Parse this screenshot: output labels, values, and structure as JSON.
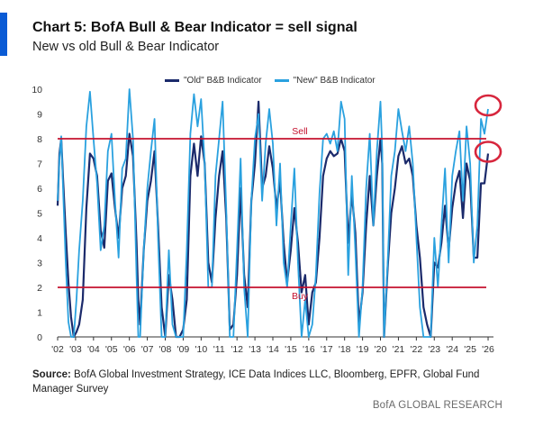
{
  "header": {
    "title": "Chart 5: BofA Bull & Bear Indicator = sell signal",
    "subtitle": "New vs old Bull & Bear Indicator",
    "accent_color": "#0a5bd5"
  },
  "footer": {
    "source_label": "Source:",
    "source_text": "BofA Global Investment Strategy, ICE Data Indices LLC, Bloomberg, EPFR, Global Fund Manager Survey",
    "brand": "BofA GLOBAL RESEARCH"
  },
  "chart_data": {
    "type": "line",
    "title": "Chart 5: BofA Bull & Bear Indicator = sell signal",
    "subtitle": "New vs old Bull & Bear Indicator",
    "xlabel": "",
    "ylabel": "",
    "xlim": [
      2002,
      2026.3
    ],
    "ylim": [
      0,
      10
    ],
    "yticks": [
      "0",
      "1",
      "2",
      "3",
      "4",
      "5",
      "6",
      "7",
      "8",
      "9",
      "10"
    ],
    "xticks": [
      "'02",
      "'03",
      "'04",
      "'05",
      "'06",
      "'07",
      "'08",
      "'09",
      "'10",
      "'11",
      "'12",
      "'13",
      "'14",
      "'15",
      "'16",
      "'17",
      "'18",
      "'19",
      "'20",
      "'21",
      "'22",
      "'23",
      "'24",
      "'25",
      "'26"
    ],
    "grid": false,
    "legend_position": "top",
    "reference_lines": [
      {
        "label": "Sell",
        "y": 8,
        "color": "#c4122f"
      },
      {
        "label": "Buy",
        "y": 2,
        "color": "#c4122f"
      }
    ],
    "highlight_markers": [
      {
        "series": "\"New\" B&B Indicator",
        "x": 2026.0,
        "y": 9.2,
        "color": "#d7263d"
      },
      {
        "series": "\"Old\" B&B Indicator",
        "x": 2026.0,
        "y": 7.4,
        "color": "#d7263d"
      }
    ],
    "series": [
      {
        "name": "\"Old\" B&B Indicator",
        "color": "#1b2a6b",
        "x": [
          2002.0,
          2002.1,
          2002.2,
          2002.3,
          2002.45,
          2002.6,
          2002.75,
          2002.9,
          2003.05,
          2003.2,
          2003.4,
          2003.6,
          2003.8,
          2004.0,
          2004.2,
          2004.4,
          2004.6,
          2004.8,
          2005.0,
          2005.2,
          2005.4,
          2005.6,
          2005.8,
          2006.0,
          2006.2,
          2006.4,
          2006.5,
          2006.6,
          2006.8,
          2007.0,
          2007.2,
          2007.4,
          2007.6,
          2007.8,
          2008.0,
          2008.2,
          2008.4,
          2008.6,
          2008.8,
          2009.0,
          2009.2,
          2009.4,
          2009.6,
          2009.8,
          2010.0,
          2010.2,
          2010.4,
          2010.6,
          2010.8,
          2011.0,
          2011.2,
          2011.4,
          2011.6,
          2011.8,
          2012.0,
          2012.2,
          2012.4,
          2012.6,
          2012.8,
          2013.0,
          2013.2,
          2013.4,
          2013.6,
          2013.8,
          2014.0,
          2014.2,
          2014.4,
          2014.6,
          2014.8,
          2015.0,
          2015.2,
          2015.4,
          2015.6,
          2015.8,
          2016.0,
          2016.2,
          2016.4,
          2016.6,
          2016.8,
          2017.0,
          2017.2,
          2017.4,
          2017.6,
          2017.8,
          2018.0,
          2018.2,
          2018.4,
          2018.6,
          2018.8,
          2019.0,
          2019.2,
          2019.4,
          2019.6,
          2019.8,
          2020.0,
          2020.1,
          2020.2,
          2020.4,
          2020.6,
          2020.8,
          2021.0,
          2021.2,
          2021.4,
          2021.6,
          2021.8,
          2022.0,
          2022.2,
          2022.4,
          2022.6,
          2022.8,
          2023.0,
          2023.2,
          2023.4,
          2023.6,
          2023.8,
          2024.0,
          2024.2,
          2024.4,
          2024.6,
          2024.8,
          2025.0,
          2025.2,
          2025.4,
          2025.6,
          2025.8,
          2026.0
        ],
        "values": [
          5.3,
          7.4,
          8.0,
          6.4,
          4.2,
          2.2,
          0.8,
          0.0,
          0.2,
          0.5,
          1.5,
          5.2,
          7.4,
          7.2,
          6.5,
          4.3,
          3.6,
          6.3,
          6.6,
          5.2,
          4.0,
          6.0,
          6.5,
          8.2,
          7.3,
          3.8,
          1.5,
          0.5,
          3.5,
          5.5,
          6.3,
          7.5,
          4.5,
          1.2,
          0.0,
          2.5,
          1.5,
          0.0,
          0.0,
          0.3,
          1.5,
          6.5,
          7.8,
          6.5,
          8.1,
          7.0,
          3.0,
          2.2,
          4.8,
          6.5,
          7.5,
          4.8,
          0.3,
          0.5,
          2.5,
          6.0,
          2.5,
          1.2,
          5.5,
          7.0,
          9.5,
          6.0,
          6.5,
          7.7,
          6.8,
          5.2,
          6.3,
          3.8,
          2.2,
          3.5,
          5.2,
          3.8,
          1.8,
          2.5,
          0.5,
          1.8,
          2.2,
          4.0,
          6.5,
          7.2,
          7.5,
          7.3,
          7.4,
          8.0,
          7.5,
          3.8,
          5.8,
          4.2,
          0.5,
          1.8,
          4.5,
          6.5,
          4.5,
          6.5,
          8.0,
          7.0,
          0.0,
          2.8,
          5.0,
          6.0,
          7.3,
          7.7,
          7.0,
          7.2,
          6.5,
          4.5,
          3.2,
          1.2,
          0.5,
          0.0,
          3.0,
          2.8,
          3.8,
          5.3,
          3.5,
          5.2,
          6.2,
          6.7,
          4.8,
          7.0,
          6.3,
          3.2,
          3.2,
          6.2,
          6.2,
          7.4
        ]
      },
      {
        "name": "\"New\" B&B Indicator",
        "color": "#2aa1df",
        "x": [
          2002.0,
          2002.1,
          2002.2,
          2002.3,
          2002.45,
          2002.6,
          2002.75,
          2002.9,
          2003.05,
          2003.2,
          2003.4,
          2003.6,
          2003.8,
          2004.0,
          2004.2,
          2004.4,
          2004.6,
          2004.8,
          2005.0,
          2005.2,
          2005.4,
          2005.6,
          2005.8,
          2006.0,
          2006.2,
          2006.4,
          2006.5,
          2006.6,
          2006.8,
          2007.0,
          2007.2,
          2007.4,
          2007.6,
          2007.8,
          2008.0,
          2008.2,
          2008.4,
          2008.6,
          2008.8,
          2009.0,
          2009.2,
          2009.4,
          2009.6,
          2009.8,
          2010.0,
          2010.2,
          2010.4,
          2010.6,
          2010.8,
          2011.0,
          2011.2,
          2011.4,
          2011.6,
          2011.8,
          2012.0,
          2012.2,
          2012.4,
          2012.6,
          2012.8,
          2013.0,
          2013.2,
          2013.4,
          2013.6,
          2013.8,
          2014.0,
          2014.2,
          2014.4,
          2014.6,
          2014.8,
          2015.0,
          2015.2,
          2015.4,
          2015.6,
          2015.8,
          2016.0,
          2016.2,
          2016.4,
          2016.6,
          2016.8,
          2017.0,
          2017.2,
          2017.4,
          2017.6,
          2017.8,
          2018.0,
          2018.2,
          2018.4,
          2018.6,
          2018.8,
          2019.0,
          2019.2,
          2019.4,
          2019.6,
          2019.8,
          2020.0,
          2020.1,
          2020.2,
          2020.4,
          2020.6,
          2020.8,
          2021.0,
          2021.2,
          2021.4,
          2021.6,
          2021.8,
          2022.0,
          2022.2,
          2022.4,
          2022.6,
          2022.8,
          2023.0,
          2023.2,
          2023.4,
          2023.6,
          2023.8,
          2024.0,
          2024.2,
          2024.4,
          2024.6,
          2024.8,
          2025.0,
          2025.2,
          2025.4,
          2025.6,
          2025.8,
          2026.0
        ],
        "values": [
          5.5,
          7.2,
          8.1,
          6.0,
          3.0,
          0.6,
          0.0,
          0.0,
          1.5,
          3.5,
          5.5,
          8.5,
          9.9,
          8.0,
          6.2,
          3.5,
          4.5,
          7.5,
          8.2,
          5.5,
          3.2,
          6.8,
          7.2,
          10.0,
          8.0,
          2.5,
          0.0,
          0.0,
          3.5,
          6.0,
          7.5,
          8.8,
          4.0,
          0.0,
          0.0,
          3.5,
          0.5,
          0.0,
          0.0,
          0.0,
          3.5,
          8.2,
          9.8,
          8.5,
          9.6,
          7.0,
          2.0,
          2.0,
          6.5,
          8.0,
          9.5,
          5.2,
          0.0,
          0.0,
          3.5,
          7.2,
          2.0,
          0.0,
          5.5,
          8.0,
          9.0,
          5.5,
          7.8,
          9.2,
          7.8,
          4.5,
          7.0,
          3.0,
          2.0,
          4.5,
          6.8,
          3.0,
          0.0,
          1.5,
          0.0,
          0.5,
          2.5,
          5.8,
          8.0,
          8.2,
          7.8,
          8.3,
          7.5,
          9.5,
          8.8,
          2.5,
          6.5,
          3.5,
          0.0,
          2.0,
          6.0,
          8.2,
          4.5,
          7.5,
          9.5,
          7.5,
          0.0,
          3.0,
          6.5,
          7.5,
          9.2,
          8.3,
          7.5,
          8.5,
          7.0,
          4.0,
          1.2,
          0.0,
          0.0,
          0.0,
          4.0,
          2.0,
          4.5,
          6.8,
          3.0,
          6.5,
          7.5,
          8.3,
          5.5,
          8.5,
          7.0,
          3.0,
          4.5,
          8.8,
          8.2,
          9.2
        ]
      }
    ]
  }
}
